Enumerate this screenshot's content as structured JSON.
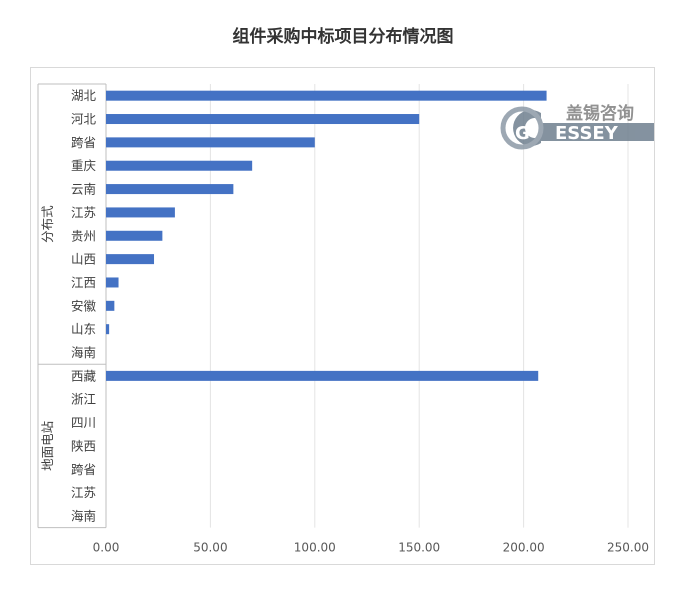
{
  "chart_data": {
    "type": "bar",
    "orientation": "horizontal",
    "title": "组件采购中标项目分布情况图",
    "xlim": [
      0,
      250
    ],
    "xticks": [
      "0.00",
      "50.00",
      "100.00",
      "150.00",
      "200.00",
      "250.00"
    ],
    "grid": true,
    "bar_color": "#4472c4",
    "groups": [
      {
        "name": "分布式",
        "categories": [
          "湖北",
          "河北",
          "跨省",
          "重庆",
          "云南",
          "江苏",
          "贵州",
          "山西",
          "江西",
          "安徽",
          "山东",
          "海南"
        ],
        "values": [
          211,
          150,
          100,
          70,
          61,
          33,
          27,
          23,
          6,
          4,
          1.5,
          0
        ]
      },
      {
        "name": "地面电站",
        "categories": [
          "西藏",
          "浙江",
          "四川",
          "陕西",
          "跨省",
          "江苏",
          "海南"
        ],
        "values": [
          207,
          0,
          0,
          0,
          0,
          0,
          0
        ]
      }
    ]
  },
  "watermark": {
    "cn": "盖锡咨询",
    "en": "ESSEY",
    "initial": "G"
  }
}
